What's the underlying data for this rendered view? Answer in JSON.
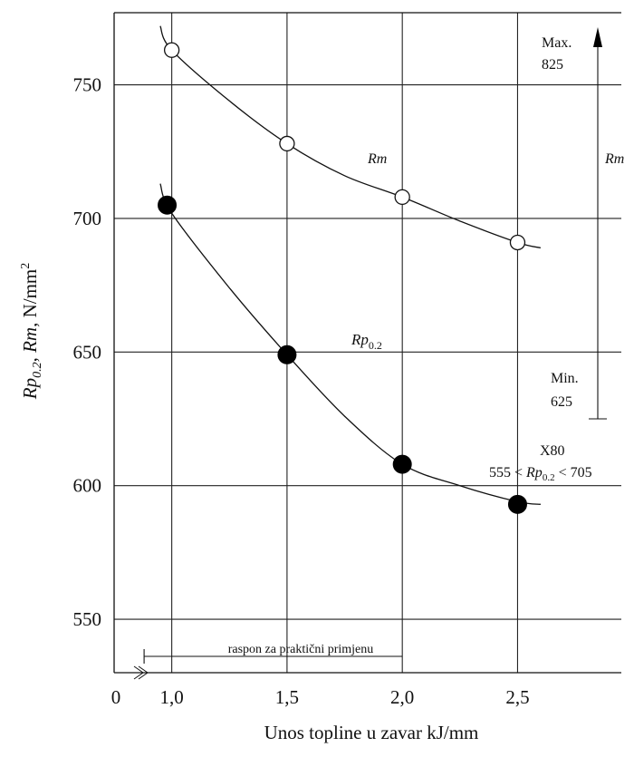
{
  "chart_data": {
    "type": "line",
    "title": "",
    "xlabel": "Unos topline u zavar kJ/mm",
    "ylabel_parts": {
      "rp": "Rp",
      "rp_sub": "0.2",
      "sep1": ", ",
      "rm": "Rm",
      "unit": ", N/mm",
      "unit_sup": "2"
    },
    "xlim": [
      0.75,
      2.95
    ],
    "ylim": [
      530,
      777
    ],
    "grid": true,
    "x_ticks": [
      1.0,
      1.5,
      2.0,
      2.5
    ],
    "x_tick_labels": [
      "1,0",
      "1,5",
      "2,0",
      "2,5"
    ],
    "x_origin_label": "0",
    "x_axis_break": true,
    "y_ticks": [
      550,
      600,
      650,
      700,
      750
    ],
    "y_tick_labels": [
      "550",
      "600",
      "650",
      "700",
      "750"
    ],
    "series": [
      {
        "name": "Rm",
        "marker": "open-circle",
        "points": [
          {
            "x": 1.0,
            "y": 763
          },
          {
            "x": 1.5,
            "y": 728
          },
          {
            "x": 2.0,
            "y": 708
          },
          {
            "x": 2.5,
            "y": 691
          }
        ],
        "curve": [
          [
            0.95,
            772
          ],
          [
            1.0,
            763
          ],
          [
            1.25,
            744
          ],
          [
            1.5,
            728
          ],
          [
            1.75,
            716
          ],
          [
            2.0,
            708
          ],
          [
            2.25,
            699
          ],
          [
            2.5,
            691
          ],
          [
            2.6,
            689
          ]
        ]
      },
      {
        "name_main": "Rp",
        "name_sub": "0.2",
        "marker": "filled-circle",
        "points": [
          {
            "x": 0.98,
            "y": 705
          },
          {
            "x": 1.5,
            "y": 649
          },
          {
            "x": 2.0,
            "y": 608
          },
          {
            "x": 2.5,
            "y": 593
          }
        ],
        "curve": [
          [
            0.95,
            713
          ],
          [
            1.0,
            702
          ],
          [
            1.25,
            674
          ],
          [
            1.5,
            649
          ],
          [
            1.75,
            626
          ],
          [
            2.0,
            608
          ],
          [
            2.25,
            600
          ],
          [
            2.5,
            594
          ],
          [
            2.6,
            593
          ]
        ]
      }
    ],
    "annotations": {
      "rm_curve_label": "Rm",
      "rm_range_label": "Rm",
      "max_label": "Max.",
      "max_value": "825",
      "min_label": "Min.",
      "min_value": "625",
      "rm_range_min": 625,
      "grade_label": "X80",
      "grade_range_left": "555 < ",
      "grade_range_rp": "Rp",
      "grade_range_sub": "0.2",
      "grade_range_right": " < 705",
      "practical_range_label": "raspon za praktični primjenu",
      "practical_range": [
        0.88,
        2.0
      ]
    }
  }
}
